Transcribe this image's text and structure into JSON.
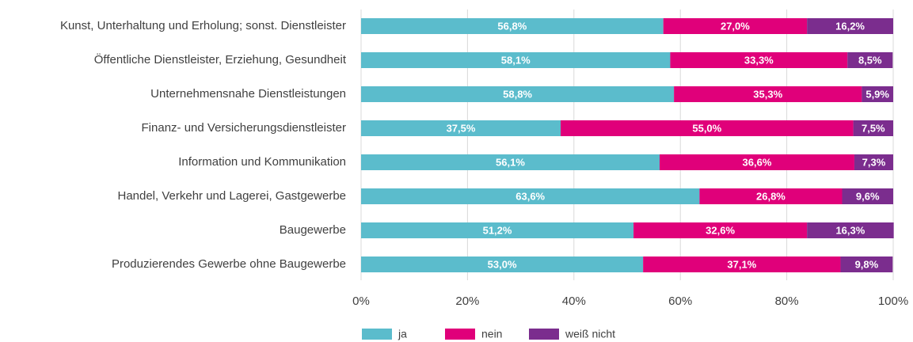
{
  "chart_data": {
    "type": "stacked_bar_horizontal",
    "categories": [
      "Kunst, Unterhaltung und Erholung; sonst. Dienstleister",
      "Öffentliche Dienstleister, Erziehung, Gesundheit",
      "Unternehmensnahe Dienstleistungen",
      "Finanz- und Versicherungsdienstleister",
      "Information und Kommunikation",
      "Handel, Verkehr und Lagerei, Gastgewerbe",
      "Baugewerbe",
      "Produzierendes Gewerbe ohne Baugewerbe"
    ],
    "series": [
      {
        "name": "ja",
        "color": "#5bbccc",
        "values": [
          56.8,
          58.1,
          58.8,
          37.5,
          56.1,
          63.6,
          51.2,
          53.0
        ],
        "value_labels": [
          "56,8%",
          "58,1%",
          "58,8%",
          "37,5%",
          "56,1%",
          "63,6%",
          "51,2%",
          "53,0%"
        ]
      },
      {
        "name": "nein",
        "color": "#e0007a",
        "values": [
          27.0,
          33.3,
          35.3,
          55.0,
          36.6,
          26.8,
          32.6,
          37.1
        ],
        "value_labels": [
          "27,0%",
          "33,3%",
          "35,3%",
          "55,0%",
          "36,6%",
          "26,8%",
          "32,6%",
          "37,1%"
        ]
      },
      {
        "name": "weiß nicht",
        "color": "#7b2d8e",
        "values": [
          16.2,
          8.5,
          5.9,
          7.5,
          7.3,
          9.6,
          16.3,
          9.8
        ],
        "value_labels": [
          "16,2%",
          "8,5%",
          "5,9%",
          "7,5%",
          "7,3%",
          "9,6%",
          "16,3%",
          "9,8%"
        ]
      }
    ],
    "xlim": [
      0,
      100
    ],
    "xticks": [
      {
        "value": 0,
        "label": "0%"
      },
      {
        "value": 20,
        "label": "20%"
      },
      {
        "value": 40,
        "label": "40%"
      },
      {
        "value": 60,
        "label": "60%"
      },
      {
        "value": 80,
        "label": "80%"
      },
      {
        "value": 100,
        "label": "100%"
      }
    ],
    "grid": true,
    "legend": "bottom"
  }
}
